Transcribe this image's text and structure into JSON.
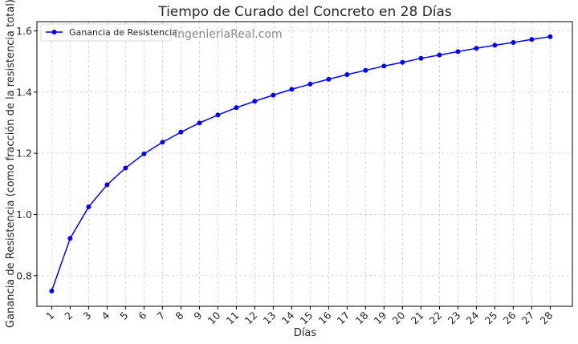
{
  "chart_data": {
    "type": "line",
    "title": "Tiempo de Curado del Concreto en 28 Días",
    "xlabel": "Días",
    "ylabel": "Ganancia de Resistencia (como fracción de la resistencia total)",
    "x": [
      1,
      2,
      3,
      4,
      5,
      6,
      7,
      8,
      9,
      10,
      11,
      12,
      13,
      14,
      15,
      16,
      17,
      18,
      19,
      20,
      21,
      22,
      23,
      24,
      25,
      26,
      27,
      28
    ],
    "series": [
      {
        "name": "Ganancia de Resistencia",
        "color": "#0000ff",
        "values": [
          0.75,
          0.922,
          1.025,
          1.097,
          1.152,
          1.198,
          1.236,
          1.269,
          1.299,
          1.325,
          1.349,
          1.37,
          1.39,
          1.409,
          1.426,
          1.442,
          1.457,
          1.471,
          1.485,
          1.497,
          1.51,
          1.521,
          1.532,
          1.543,
          1.553,
          1.562,
          1.572,
          1.581
        ]
      }
    ],
    "xlim": [
      0.2,
      29.2
    ],
    "ylim": [
      0.7,
      1.63
    ],
    "yticks": [
      0.8,
      1.0,
      1.2,
      1.4,
      1.6
    ],
    "ytick_labels": [
      "0.8",
      "1.0",
      "1.2",
      "1.4",
      "1.6"
    ],
    "grid": true,
    "legend_position": "top-left",
    "watermark": "IngenieriaReal.com"
  }
}
